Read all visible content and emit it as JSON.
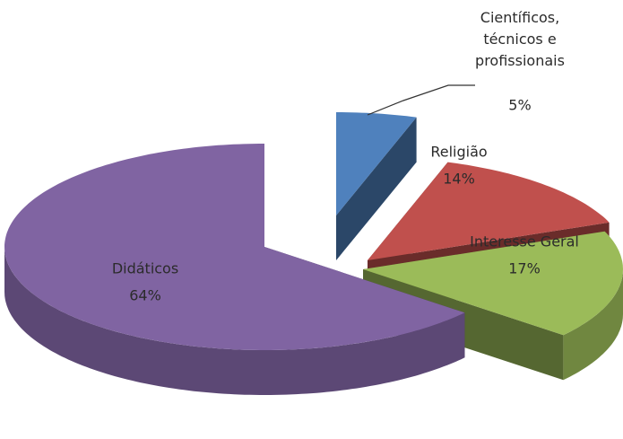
{
  "chart_data": {
    "type": "pie3d",
    "categories": [
      "Científicos, técnicos e profissionais",
      "Religião",
      "Interesse Geral",
      "Didáticos"
    ],
    "values": [
      5,
      14,
      17,
      64
    ],
    "value_labels": [
      "5%",
      "14%",
      "17%",
      "64%"
    ],
    "colors": [
      "#4f81bd",
      "#c0504d",
      "#9bbb59",
      "#8064a2"
    ]
  }
}
